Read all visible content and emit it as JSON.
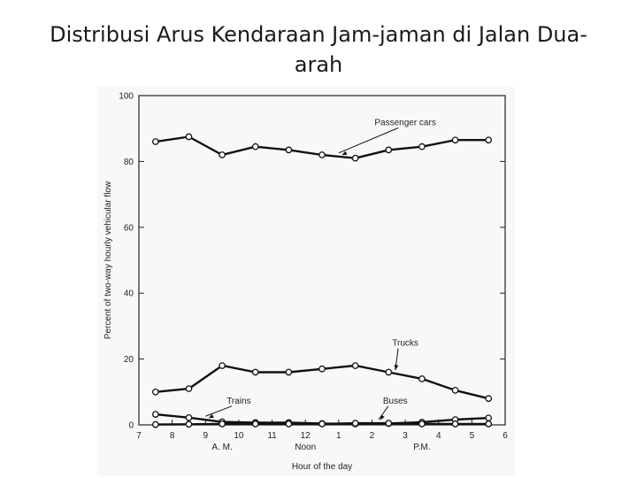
{
  "slide": {
    "title_line1": "Distribusi Arus Kendaraan Jam-jaman di Jalan Dua-",
    "title_line2": "arah"
  },
  "chart_data": {
    "type": "line",
    "title": "",
    "xlabel": "Hour of the day",
    "ylabel": "Percent of two-way hourly vehicular flow",
    "ylim": [
      0,
      100
    ],
    "xlim": [
      7,
      18
    ],
    "yticks": [
      "0",
      "20",
      "40",
      "60",
      "80",
      "100"
    ],
    "xticks": [
      "7",
      "8",
      "9",
      "10",
      "11",
      "12",
      "1",
      "2",
      "3",
      "4",
      "5",
      "6"
    ],
    "x_sublabels": [
      "A. M.",
      "Noon",
      "P.M."
    ],
    "grid": false,
    "x": [
      7.5,
      8.5,
      9.5,
      10.5,
      11.5,
      12.5,
      13.5,
      14.5,
      15.5,
      16.5,
      17.5
    ],
    "series": [
      {
        "name": "Passenger cars",
        "values": [
          86,
          87.5,
          82,
          84.5,
          83.5,
          82,
          81,
          83.5,
          84.5,
          86.5,
          86.5
        ]
      },
      {
        "name": "Trucks",
        "values": [
          10,
          11,
          18,
          16,
          16,
          17,
          18,
          16,
          14,
          10.5,
          8
        ]
      },
      {
        "name": "Trains",
        "values": [
          3.2,
          2.2,
          0.9,
          0.7,
          0.7,
          0.4,
          0.3,
          0.4,
          0.8,
          1.6,
          2.1
        ]
      },
      {
        "name": "Buses",
        "values": [
          0.1,
          0.2,
          0.3,
          0.3,
          0.3,
          0.3,
          0.5,
          0.5,
          0.3,
          0.3,
          0.3
        ]
      }
    ]
  }
}
